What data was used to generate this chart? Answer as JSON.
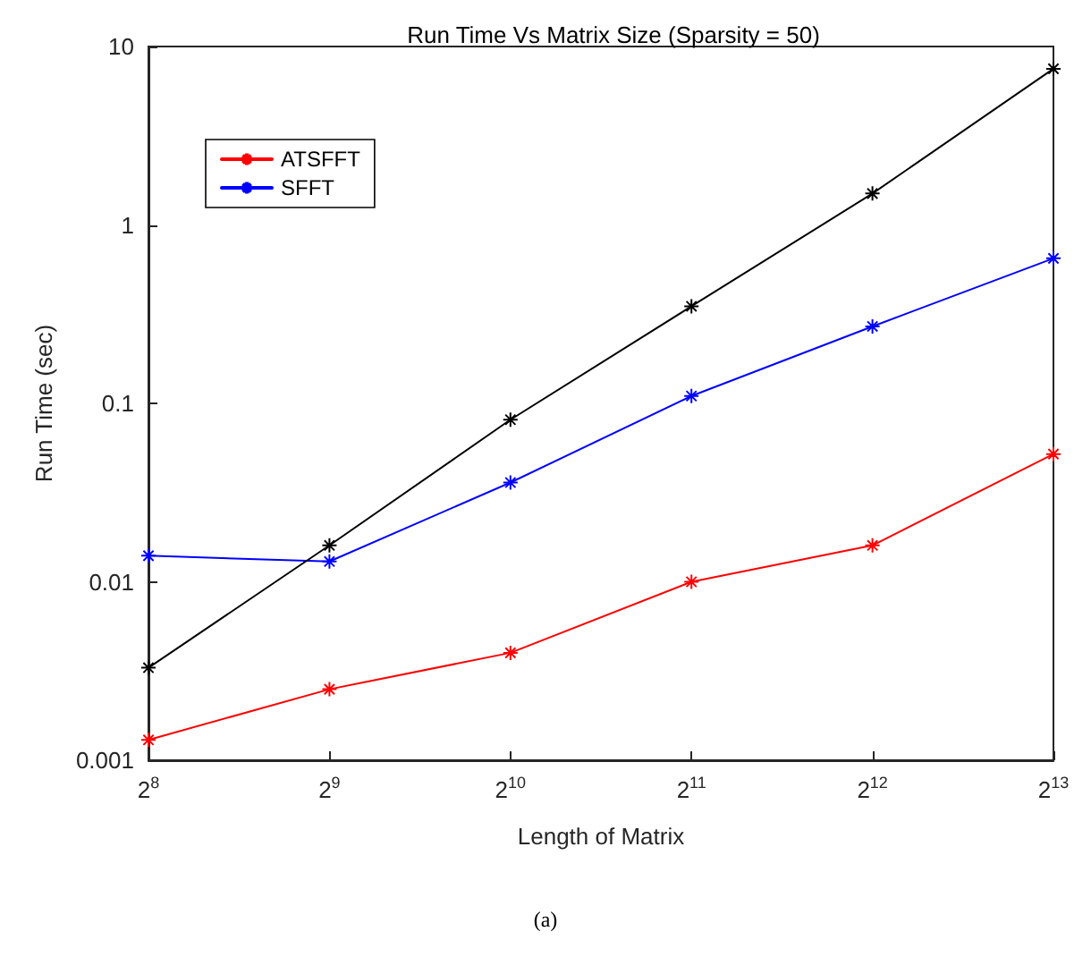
{
  "chart_data": {
    "type": "line",
    "title": "Run Time Vs Matrix Size (Sparsity = 50)",
    "xlabel": "Length of Matrix",
    "ylabel": "Run Time (sec)",
    "annotations": [
      "(a)"
    ],
    "x": [
      256,
      512,
      1024,
      2048,
      4096,
      8192
    ],
    "series": [
      {
        "name": "ATSFFT",
        "color": "#ff0000",
        "values": [
          0.0013,
          0.0025,
          0.004,
          0.01,
          0.016,
          0.052
        ]
      },
      {
        "name": "SFFT",
        "color": "#0000ff",
        "values": [
          0.014,
          0.013,
          0.036,
          0.11,
          0.27,
          0.65
        ]
      },
      {
        "color": "#000000",
        "values": [
          0.0033,
          0.016,
          0.081,
          0.35,
          1.5,
          7.5
        ]
      }
    ],
    "log": "xy",
    "xlim": [
      256,
      8192
    ],
    "ylim": [
      0.001,
      10
    ],
    "xticks": [
      {
        "value": 256,
        "label": "2$^{8}$"
      },
      {
        "value": 512,
        "label": "2$^{9}$"
      },
      {
        "value": 1024,
        "label": "2$^{10}$"
      },
      {
        "value": 2048,
        "label": "2$^{11}$"
      },
      {
        "value": 4096,
        "label": "2$^{12}$"
      },
      {
        "value": 8192,
        "label": "2$^{13}$"
      }
    ],
    "yticks": [
      0.001,
      0.01,
      0.1,
      1,
      10
    ],
    "grid": false,
    "legend": "top left",
    "marker": "cross",
    "line_style": "solid"
  }
}
